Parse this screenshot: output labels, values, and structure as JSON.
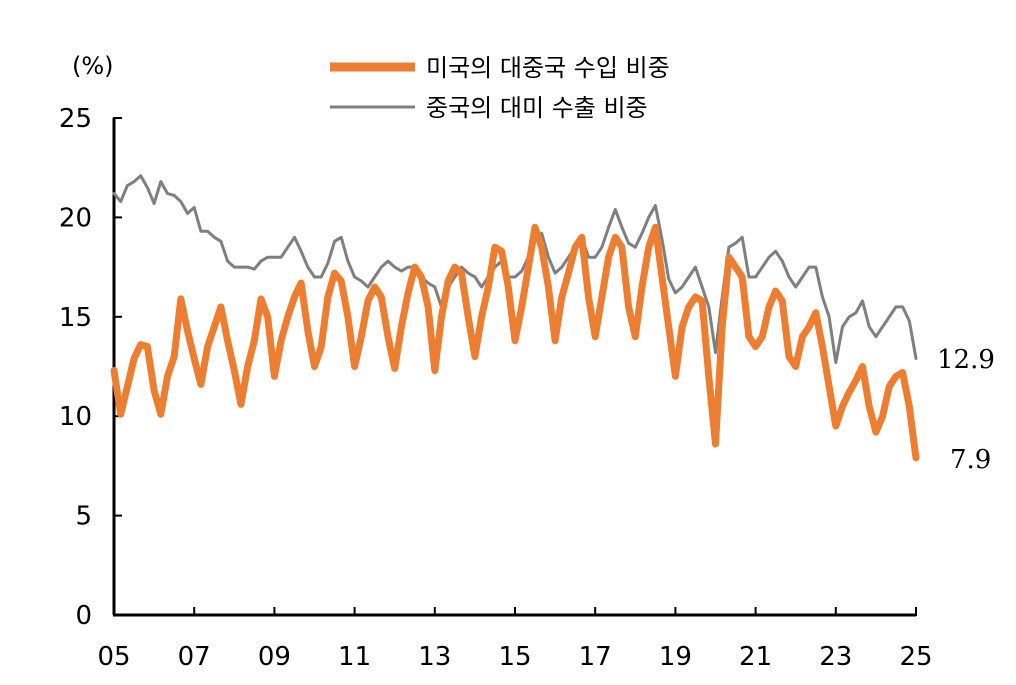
{
  "chart_data": {
    "type": "line",
    "unit_label": "(%)",
    "x_tick_labels": [
      "05",
      "07",
      "09",
      "11",
      "13",
      "15",
      "17",
      "19",
      "21",
      "23",
      "25"
    ],
    "y_tick_labels": [
      "0",
      "5",
      "10",
      "15",
      "20",
      "25"
    ],
    "ylim": [
      0,
      25
    ],
    "xlim": [
      2005,
      2025
    ],
    "grid": false,
    "legend_position": "top-center",
    "x": [
      2005.0,
      2005.167,
      2005.333,
      2005.5,
      2005.667,
      2005.833,
      2006.0,
      2006.167,
      2006.333,
      2006.5,
      2006.667,
      2006.833,
      2007.0,
      2007.167,
      2007.333,
      2007.5,
      2007.667,
      2007.833,
      2008.0,
      2008.167,
      2008.333,
      2008.5,
      2008.667,
      2008.833,
      2009.0,
      2009.167,
      2009.333,
      2009.5,
      2009.667,
      2009.833,
      2010.0,
      2010.167,
      2010.333,
      2010.5,
      2010.667,
      2010.833,
      2011.0,
      2011.167,
      2011.333,
      2011.5,
      2011.667,
      2011.833,
      2012.0,
      2012.167,
      2012.333,
      2012.5,
      2012.667,
      2012.833,
      2013.0,
      2013.167,
      2013.333,
      2013.5,
      2013.667,
      2013.833,
      2014.0,
      2014.167,
      2014.333,
      2014.5,
      2014.667,
      2014.833,
      2015.0,
      2015.167,
      2015.333,
      2015.5,
      2015.667,
      2015.833,
      2016.0,
      2016.167,
      2016.333,
      2016.5,
      2016.667,
      2016.833,
      2017.0,
      2017.167,
      2017.333,
      2017.5,
      2017.667,
      2017.833,
      2018.0,
      2018.167,
      2018.333,
      2018.5,
      2018.667,
      2018.833,
      2019.0,
      2019.167,
      2019.333,
      2019.5,
      2019.667,
      2019.833,
      2020.0,
      2020.167,
      2020.333,
      2020.5,
      2020.667,
      2020.833,
      2021.0,
      2021.167,
      2021.333,
      2021.5,
      2021.667,
      2021.833,
      2022.0,
      2022.167,
      2022.333,
      2022.5,
      2022.667,
      2022.833,
      2023.0,
      2023.167,
      2023.333,
      2023.5,
      2023.667,
      2023.833,
      2024.0,
      2024.167,
      2024.333,
      2024.5,
      2024.667,
      2024.833,
      2025.0
    ],
    "series": [
      {
        "name": "미국의 대중국 수입 비중",
        "color": "#ED7D31",
        "values": [
          12.3,
          10.1,
          11.5,
          12.9,
          13.6,
          13.5,
          11.3,
          10.1,
          12.0,
          13.0,
          15.9,
          14.3,
          12.9,
          11.6,
          13.5,
          14.5,
          15.5,
          13.8,
          12.3,
          10.6,
          12.5,
          13.8,
          15.9,
          15.0,
          12.0,
          13.8,
          15.0,
          16.0,
          16.7,
          14.3,
          12.5,
          13.5,
          16.0,
          17.2,
          16.8,
          15.0,
          12.5,
          14.0,
          15.8,
          16.5,
          16.0,
          14.0,
          12.4,
          14.5,
          16.2,
          17.5,
          17.0,
          15.5,
          12.3,
          15.0,
          16.8,
          17.5,
          17.2,
          15.0,
          13.0,
          15.0,
          16.5,
          18.5,
          18.3,
          16.5,
          13.8,
          15.5,
          17.5,
          19.5,
          18.5,
          16.5,
          13.8,
          16.0,
          17.2,
          18.5,
          19.0,
          16.0,
          14.0,
          16.0,
          18.0,
          19.0,
          18.5,
          15.5,
          14.0,
          16.5,
          18.5,
          19.5,
          17.0,
          14.5,
          12.0,
          14.5,
          15.5,
          16.0,
          15.8,
          12.0,
          8.6,
          14.5,
          18.0,
          17.5,
          17.0,
          14.0,
          13.5,
          14.0,
          15.5,
          16.3,
          15.8,
          13.0,
          12.5,
          14.0,
          14.5,
          15.2,
          13.5,
          11.5,
          9.5,
          10.5,
          11.2,
          11.8,
          12.5,
          10.5,
          9.2,
          10.0,
          11.5,
          12.0,
          12.2,
          10.5,
          7.9
        ]
      },
      {
        "name": "중국의 대미 수출 비중",
        "color": "#7F7F7F",
        "values": [
          21.2,
          20.8,
          21.6,
          21.8,
          22.1,
          21.5,
          20.7,
          21.8,
          21.2,
          21.1,
          20.8,
          20.2,
          20.5,
          19.3,
          19.3,
          19.0,
          18.8,
          17.8,
          17.5,
          17.5,
          17.5,
          17.4,
          17.8,
          18.0,
          18.0,
          18.0,
          18.5,
          19.0,
          18.3,
          17.5,
          17.0,
          17.0,
          17.7,
          18.8,
          19.0,
          17.8,
          17.0,
          16.8,
          16.5,
          17.0,
          17.5,
          17.8,
          17.5,
          17.3,
          17.5,
          17.5,
          17.0,
          16.7,
          16.5,
          15.5,
          16.5,
          17.0,
          17.5,
          17.2,
          17.0,
          16.5,
          17.0,
          17.5,
          17.8,
          17.0,
          17.0,
          17.3,
          18.0,
          18.8,
          19.2,
          18.0,
          17.2,
          17.5,
          18.0,
          18.5,
          19.0,
          18.0,
          18.0,
          18.5,
          19.5,
          20.4,
          19.5,
          18.7,
          18.5,
          19.2,
          20.0,
          20.6,
          18.9,
          16.9,
          16.2,
          16.5,
          17.0,
          17.5,
          16.5,
          15.5,
          13.2,
          16.0,
          18.5,
          18.7,
          19.0,
          17.0,
          17.0,
          17.5,
          18.0,
          18.3,
          17.8,
          17.0,
          16.5,
          17.0,
          17.5,
          17.5,
          16.0,
          15.0,
          12.7,
          14.5,
          15.0,
          15.2,
          15.8,
          14.5,
          14.0,
          14.5,
          15.0,
          15.5,
          15.5,
          14.8,
          12.9
        ]
      }
    ],
    "end_labels": [
      "12.9",
      "7.9"
    ]
  }
}
